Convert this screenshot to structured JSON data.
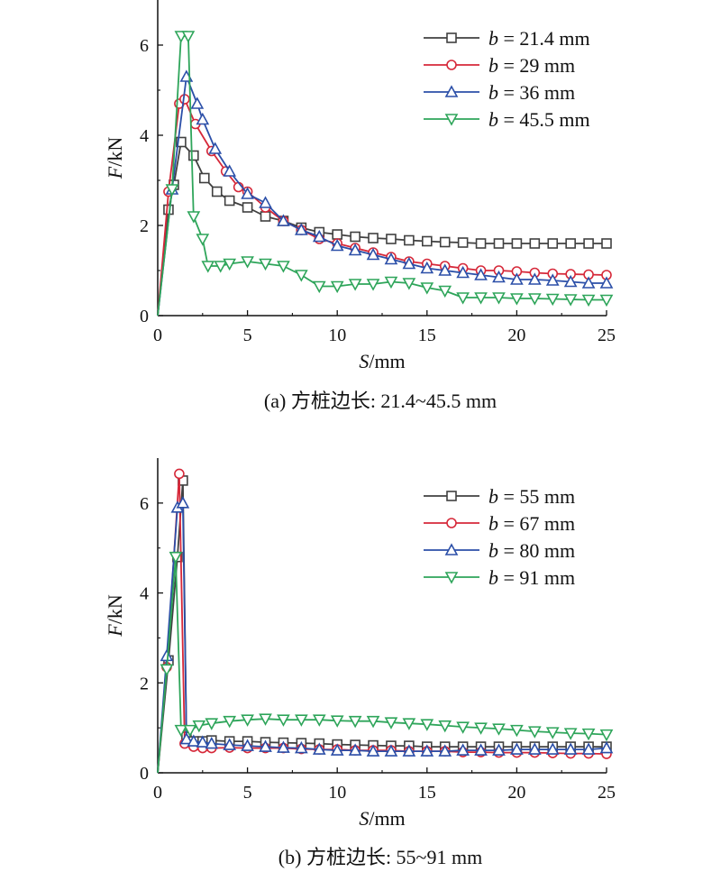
{
  "chart_data": [
    {
      "type": "line",
      "caption": "(a) 方桩边长: 21.4~45.5 mm",
      "xlabel_var": "S",
      "xlabel_unit": "/mm",
      "ylabel_var": "F",
      "ylabel_unit": "/kN",
      "xlim": [
        0,
        25
      ],
      "ylim": [
        0,
        7
      ],
      "xticks": [
        "0",
        "5",
        "10",
        "15",
        "20",
        "25"
      ],
      "yticks": [
        "0",
        "2",
        "4",
        "6"
      ],
      "legend_position": "top-right",
      "series": [
        {
          "name_var": "b",
          "name_rest": " = 21.4 mm",
          "marker": "square",
          "color": "#404040",
          "points": [
            [
              0,
              0
            ],
            [
              0.6,
              2.35
            ],
            [
              0.9,
              2.9
            ],
            [
              1.3,
              3.85
            ],
            [
              2,
              3.55
            ],
            [
              2.6,
              3.05
            ],
            [
              3.3,
              2.75
            ],
            [
              4,
              2.55
            ],
            [
              5,
              2.4
            ],
            [
              6,
              2.2
            ],
            [
              7,
              2.1
            ],
            [
              8,
              1.95
            ],
            [
              9,
              1.85
            ],
            [
              10,
              1.8
            ],
            [
              11,
              1.75
            ],
            [
              12,
              1.72
            ],
            [
              13,
              1.7
            ],
            [
              14,
              1.67
            ],
            [
              15,
              1.65
            ],
            [
              16,
              1.63
            ],
            [
              17,
              1.62
            ],
            [
              18,
              1.6
            ],
            [
              19,
              1.6
            ],
            [
              20,
              1.6
            ],
            [
              21,
              1.6
            ],
            [
              22,
              1.6
            ],
            [
              23,
              1.6
            ],
            [
              24,
              1.6
            ],
            [
              25,
              1.6
            ]
          ]
        },
        {
          "name_var": "b",
          "name_rest": " = 29 mm",
          "marker": "circle",
          "color": "#d62839",
          "points": [
            [
              0,
              0
            ],
            [
              0.6,
              2.75
            ],
            [
              1.2,
              4.7
            ],
            [
              1.5,
              4.8
            ],
            [
              2.1,
              4.25
            ],
            [
              3,
              3.65
            ],
            [
              3.8,
              3.2
            ],
            [
              4.5,
              2.85
            ],
            [
              5,
              2.75
            ],
            [
              6,
              2.4
            ],
            [
              7,
              2.1
            ],
            [
              8,
              1.9
            ],
            [
              9,
              1.7
            ],
            [
              10,
              1.6
            ],
            [
              11,
              1.5
            ],
            [
              12,
              1.4
            ],
            [
              13,
              1.3
            ],
            [
              14,
              1.2
            ],
            [
              15,
              1.15
            ],
            [
              16,
              1.1
            ],
            [
              17,
              1.05
            ],
            [
              18,
              1.0
            ],
            [
              19,
              1.0
            ],
            [
              20,
              0.98
            ],
            [
              21,
              0.95
            ],
            [
              22,
              0.93
            ],
            [
              23,
              0.92
            ],
            [
              24,
              0.91
            ],
            [
              25,
              0.9
            ]
          ]
        },
        {
          "name_var": "b",
          "name_rest": " = 36 mm",
          "marker": "triangle-up",
          "color": "#2b4fa8",
          "points": [
            [
              0,
              0
            ],
            [
              0.8,
              2.8
            ],
            [
              1.6,
              5.3
            ],
            [
              2.2,
              4.7
            ],
            [
              2.5,
              4.35
            ],
            [
              3.2,
              3.7
            ],
            [
              4,
              3.2
            ],
            [
              5,
              2.7
            ],
            [
              6,
              2.5
            ],
            [
              7,
              2.1
            ],
            [
              8,
              1.9
            ],
            [
              9,
              1.75
            ],
            [
              10,
              1.55
            ],
            [
              11,
              1.45
            ],
            [
              12,
              1.35
            ],
            [
              13,
              1.25
            ],
            [
              14,
              1.15
            ],
            [
              15,
              1.05
            ],
            [
              16,
              1.0
            ],
            [
              17,
              0.95
            ],
            [
              18,
              0.9
            ],
            [
              19,
              0.85
            ],
            [
              20,
              0.8
            ],
            [
              21,
              0.8
            ],
            [
              22,
              0.78
            ],
            [
              23,
              0.75
            ],
            [
              24,
              0.72
            ],
            [
              25,
              0.72
            ]
          ]
        },
        {
          "name_var": "b",
          "name_rest": " = 45.5 mm",
          "marker": "triangle-down",
          "color": "#2ea55a",
          "points": [
            [
              0,
              0
            ],
            [
              0.8,
              2.8
            ],
            [
              1.3,
              6.2
            ],
            [
              1.7,
              6.2
            ],
            [
              2.0,
              2.2
            ],
            [
              2.5,
              1.7
            ],
            [
              2.8,
              1.1
            ],
            [
              3.5,
              1.1
            ],
            [
              4,
              1.15
            ],
            [
              5,
              1.2
            ],
            [
              6,
              1.15
            ],
            [
              7,
              1.1
            ],
            [
              8,
              0.9
            ],
            [
              9,
              0.65
            ],
            [
              10,
              0.65
            ],
            [
              11,
              0.7
            ],
            [
              12,
              0.7
            ],
            [
              13,
              0.75
            ],
            [
              14,
              0.72
            ],
            [
              15,
              0.62
            ],
            [
              16,
              0.55
            ],
            [
              17,
              0.4
            ],
            [
              18,
              0.4
            ],
            [
              19,
              0.4
            ],
            [
              20,
              0.38
            ],
            [
              21,
              0.38
            ],
            [
              22,
              0.37
            ],
            [
              23,
              0.36
            ],
            [
              24,
              0.35
            ],
            [
              25,
              0.35
            ]
          ]
        }
      ]
    },
    {
      "type": "line",
      "caption": "(b) 方桩边长: 55~91 mm",
      "xlabel_var": "S",
      "xlabel_unit": "/mm",
      "ylabel_var": "F",
      "ylabel_unit": "/kN",
      "xlim": [
        0,
        25
      ],
      "ylim": [
        0,
        7
      ],
      "xticks": [
        "0",
        "5",
        "10",
        "15",
        "20",
        "25"
      ],
      "yticks": [
        "0",
        "2",
        "4",
        "6"
      ],
      "legend_position": "top-right",
      "series": [
        {
          "name_var": "b",
          "name_rest": " = 55 mm",
          "marker": "square",
          "color": "#404040",
          "points": [
            [
              0,
              0
            ],
            [
              0.6,
              2.5
            ],
            [
              1.1,
              4.8
            ],
            [
              1.4,
              6.5
            ],
            [
              1.6,
              0.8
            ],
            [
              2,
              0.7
            ],
            [
              2.5,
              0.7
            ],
            [
              3,
              0.72
            ],
            [
              4,
              0.7
            ],
            [
              5,
              0.7
            ],
            [
              6,
              0.68
            ],
            [
              7,
              0.67
            ],
            [
              8,
              0.66
            ],
            [
              9,
              0.65
            ],
            [
              10,
              0.63
            ],
            [
              11,
              0.62
            ],
            [
              12,
              0.61
            ],
            [
              13,
              0.6
            ],
            [
              14,
              0.6
            ],
            [
              15,
              0.58
            ],
            [
              16,
              0.58
            ],
            [
              17,
              0.58
            ],
            [
              18,
              0.58
            ],
            [
              19,
              0.58
            ],
            [
              20,
              0.58
            ],
            [
              21,
              0.58
            ],
            [
              22,
              0.58
            ],
            [
              23,
              0.58
            ],
            [
              24,
              0.58
            ],
            [
              25,
              0.58
            ]
          ]
        },
        {
          "name_var": "b",
          "name_rest": " = 67 mm",
          "marker": "circle",
          "color": "#d62839",
          "points": [
            [
              0,
              0
            ],
            [
              0.5,
              2.35
            ],
            [
              1.2,
              6.65
            ],
            [
              1.5,
              0.65
            ],
            [
              2,
              0.58
            ],
            [
              2.5,
              0.55
            ],
            [
              3,
              0.55
            ],
            [
              4,
              0.56
            ],
            [
              5,
              0.55
            ],
            [
              6,
              0.55
            ],
            [
              7,
              0.55
            ],
            [
              8,
              0.53
            ],
            [
              9,
              0.52
            ],
            [
              10,
              0.52
            ],
            [
              11,
              0.5
            ],
            [
              12,
              0.5
            ],
            [
              13,
              0.5
            ],
            [
              14,
              0.48
            ],
            [
              15,
              0.48
            ],
            [
              16,
              0.48
            ],
            [
              17,
              0.46
            ],
            [
              18,
              0.46
            ],
            [
              19,
              0.45
            ],
            [
              20,
              0.45
            ],
            [
              21,
              0.45
            ],
            [
              22,
              0.44
            ],
            [
              23,
              0.43
            ],
            [
              24,
              0.43
            ],
            [
              25,
              0.42
            ]
          ]
        },
        {
          "name_var": "b",
          "name_rest": " = 80 mm",
          "marker": "triangle-up",
          "color": "#2b4fa8",
          "points": [
            [
              0,
              0
            ],
            [
              0.5,
              2.6
            ],
            [
              1.1,
              5.9
            ],
            [
              1.4,
              6.0
            ],
            [
              1.6,
              0.75
            ],
            [
              2,
              0.7
            ],
            [
              2.5,
              0.68
            ],
            [
              3,
              0.65
            ],
            [
              4,
              0.62
            ],
            [
              5,
              0.6
            ],
            [
              6,
              0.58
            ],
            [
              7,
              0.56
            ],
            [
              8,
              0.55
            ],
            [
              9,
              0.52
            ],
            [
              10,
              0.5
            ],
            [
              11,
              0.5
            ],
            [
              12,
              0.48
            ],
            [
              13,
              0.48
            ],
            [
              14,
              0.48
            ],
            [
              15,
              0.48
            ],
            [
              16,
              0.48
            ],
            [
              17,
              0.5
            ],
            [
              18,
              0.5
            ],
            [
              19,
              0.5
            ],
            [
              20,
              0.52
            ],
            [
              21,
              0.52
            ],
            [
              22,
              0.52
            ],
            [
              23,
              0.52
            ],
            [
              24,
              0.52
            ],
            [
              25,
              0.55
            ]
          ]
        },
        {
          "name_var": "b",
          "name_rest": " = 91 mm",
          "marker": "triangle-down",
          "color": "#2ea55a",
          "points": [
            [
              0,
              0
            ],
            [
              0.5,
              2.3
            ],
            [
              1.0,
              4.8
            ],
            [
              1.3,
              0.95
            ],
            [
              1.8,
              0.95
            ],
            [
              2.3,
              1.05
            ],
            [
              3,
              1.1
            ],
            [
              4,
              1.15
            ],
            [
              5,
              1.18
            ],
            [
              6,
              1.2
            ],
            [
              7,
              1.18
            ],
            [
              8,
              1.18
            ],
            [
              9,
              1.18
            ],
            [
              10,
              1.16
            ],
            [
              11,
              1.15
            ],
            [
              12,
              1.15
            ],
            [
              13,
              1.12
            ],
            [
              14,
              1.1
            ],
            [
              15,
              1.08
            ],
            [
              16,
              1.05
            ],
            [
              17,
              1.02
            ],
            [
              18,
              1.0
            ],
            [
              19,
              0.98
            ],
            [
              20,
              0.95
            ],
            [
              21,
              0.92
            ],
            [
              22,
              0.9
            ],
            [
              23,
              0.88
            ],
            [
              24,
              0.87
            ],
            [
              25,
              0.85
            ]
          ]
        }
      ]
    }
  ]
}
